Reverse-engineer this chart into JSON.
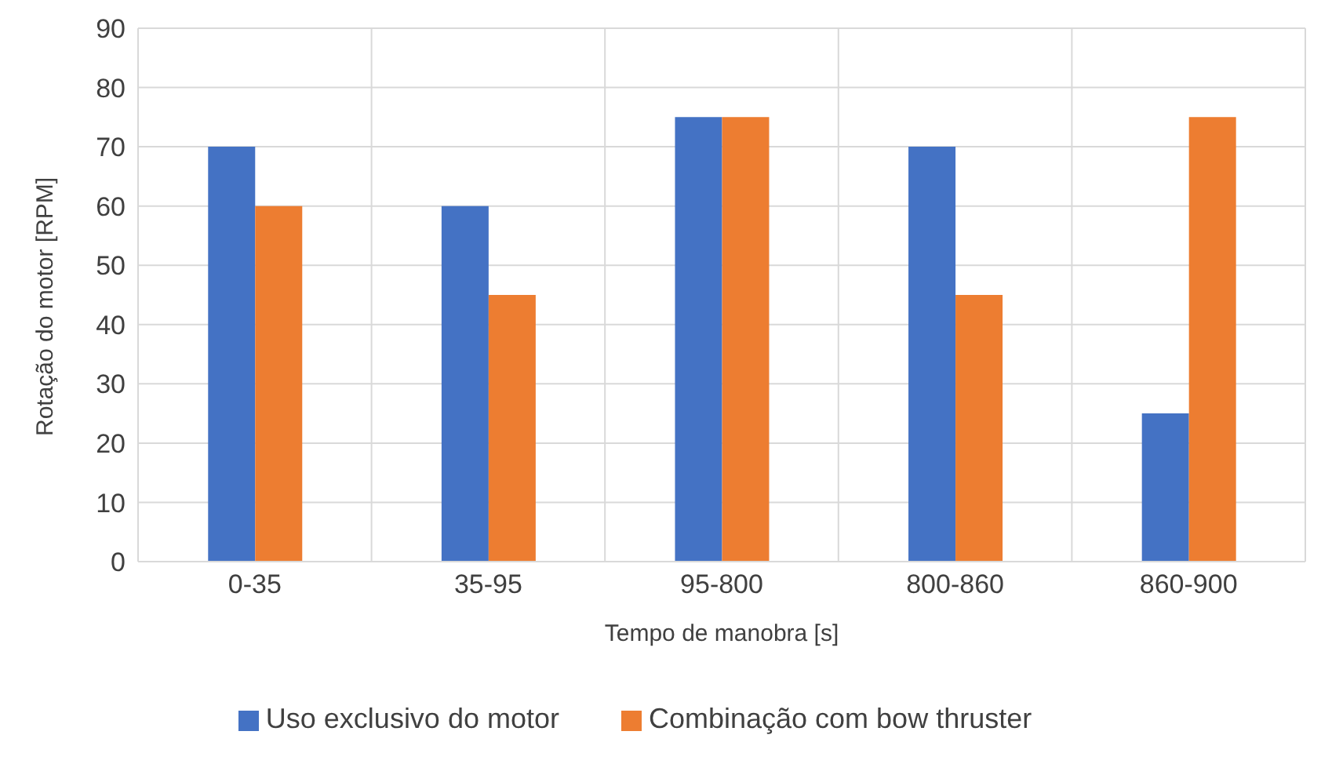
{
  "chart_data": {
    "type": "bar",
    "xlabel": "Tempo de manobra [s]",
    "ylabel": "Rotação do motor [RPM]",
    "categories": [
      "0-35",
      "35-95",
      "95-800",
      "800-860",
      "860-900"
    ],
    "series": [
      {
        "name": "Uso exclusivo do motor",
        "color": "#4472c4",
        "values": [
          70,
          60,
          75,
          70,
          25
        ]
      },
      {
        "name": "Combinação com bow thruster",
        "color": "#ed7d31",
        "values": [
          60,
          45,
          75,
          45,
          75
        ]
      }
    ],
    "ylim": [
      0,
      90
    ],
    "yticks": [
      0,
      10,
      20,
      30,
      40,
      50,
      60,
      70,
      80,
      90
    ],
    "grid": true,
    "legend": "bottom"
  }
}
